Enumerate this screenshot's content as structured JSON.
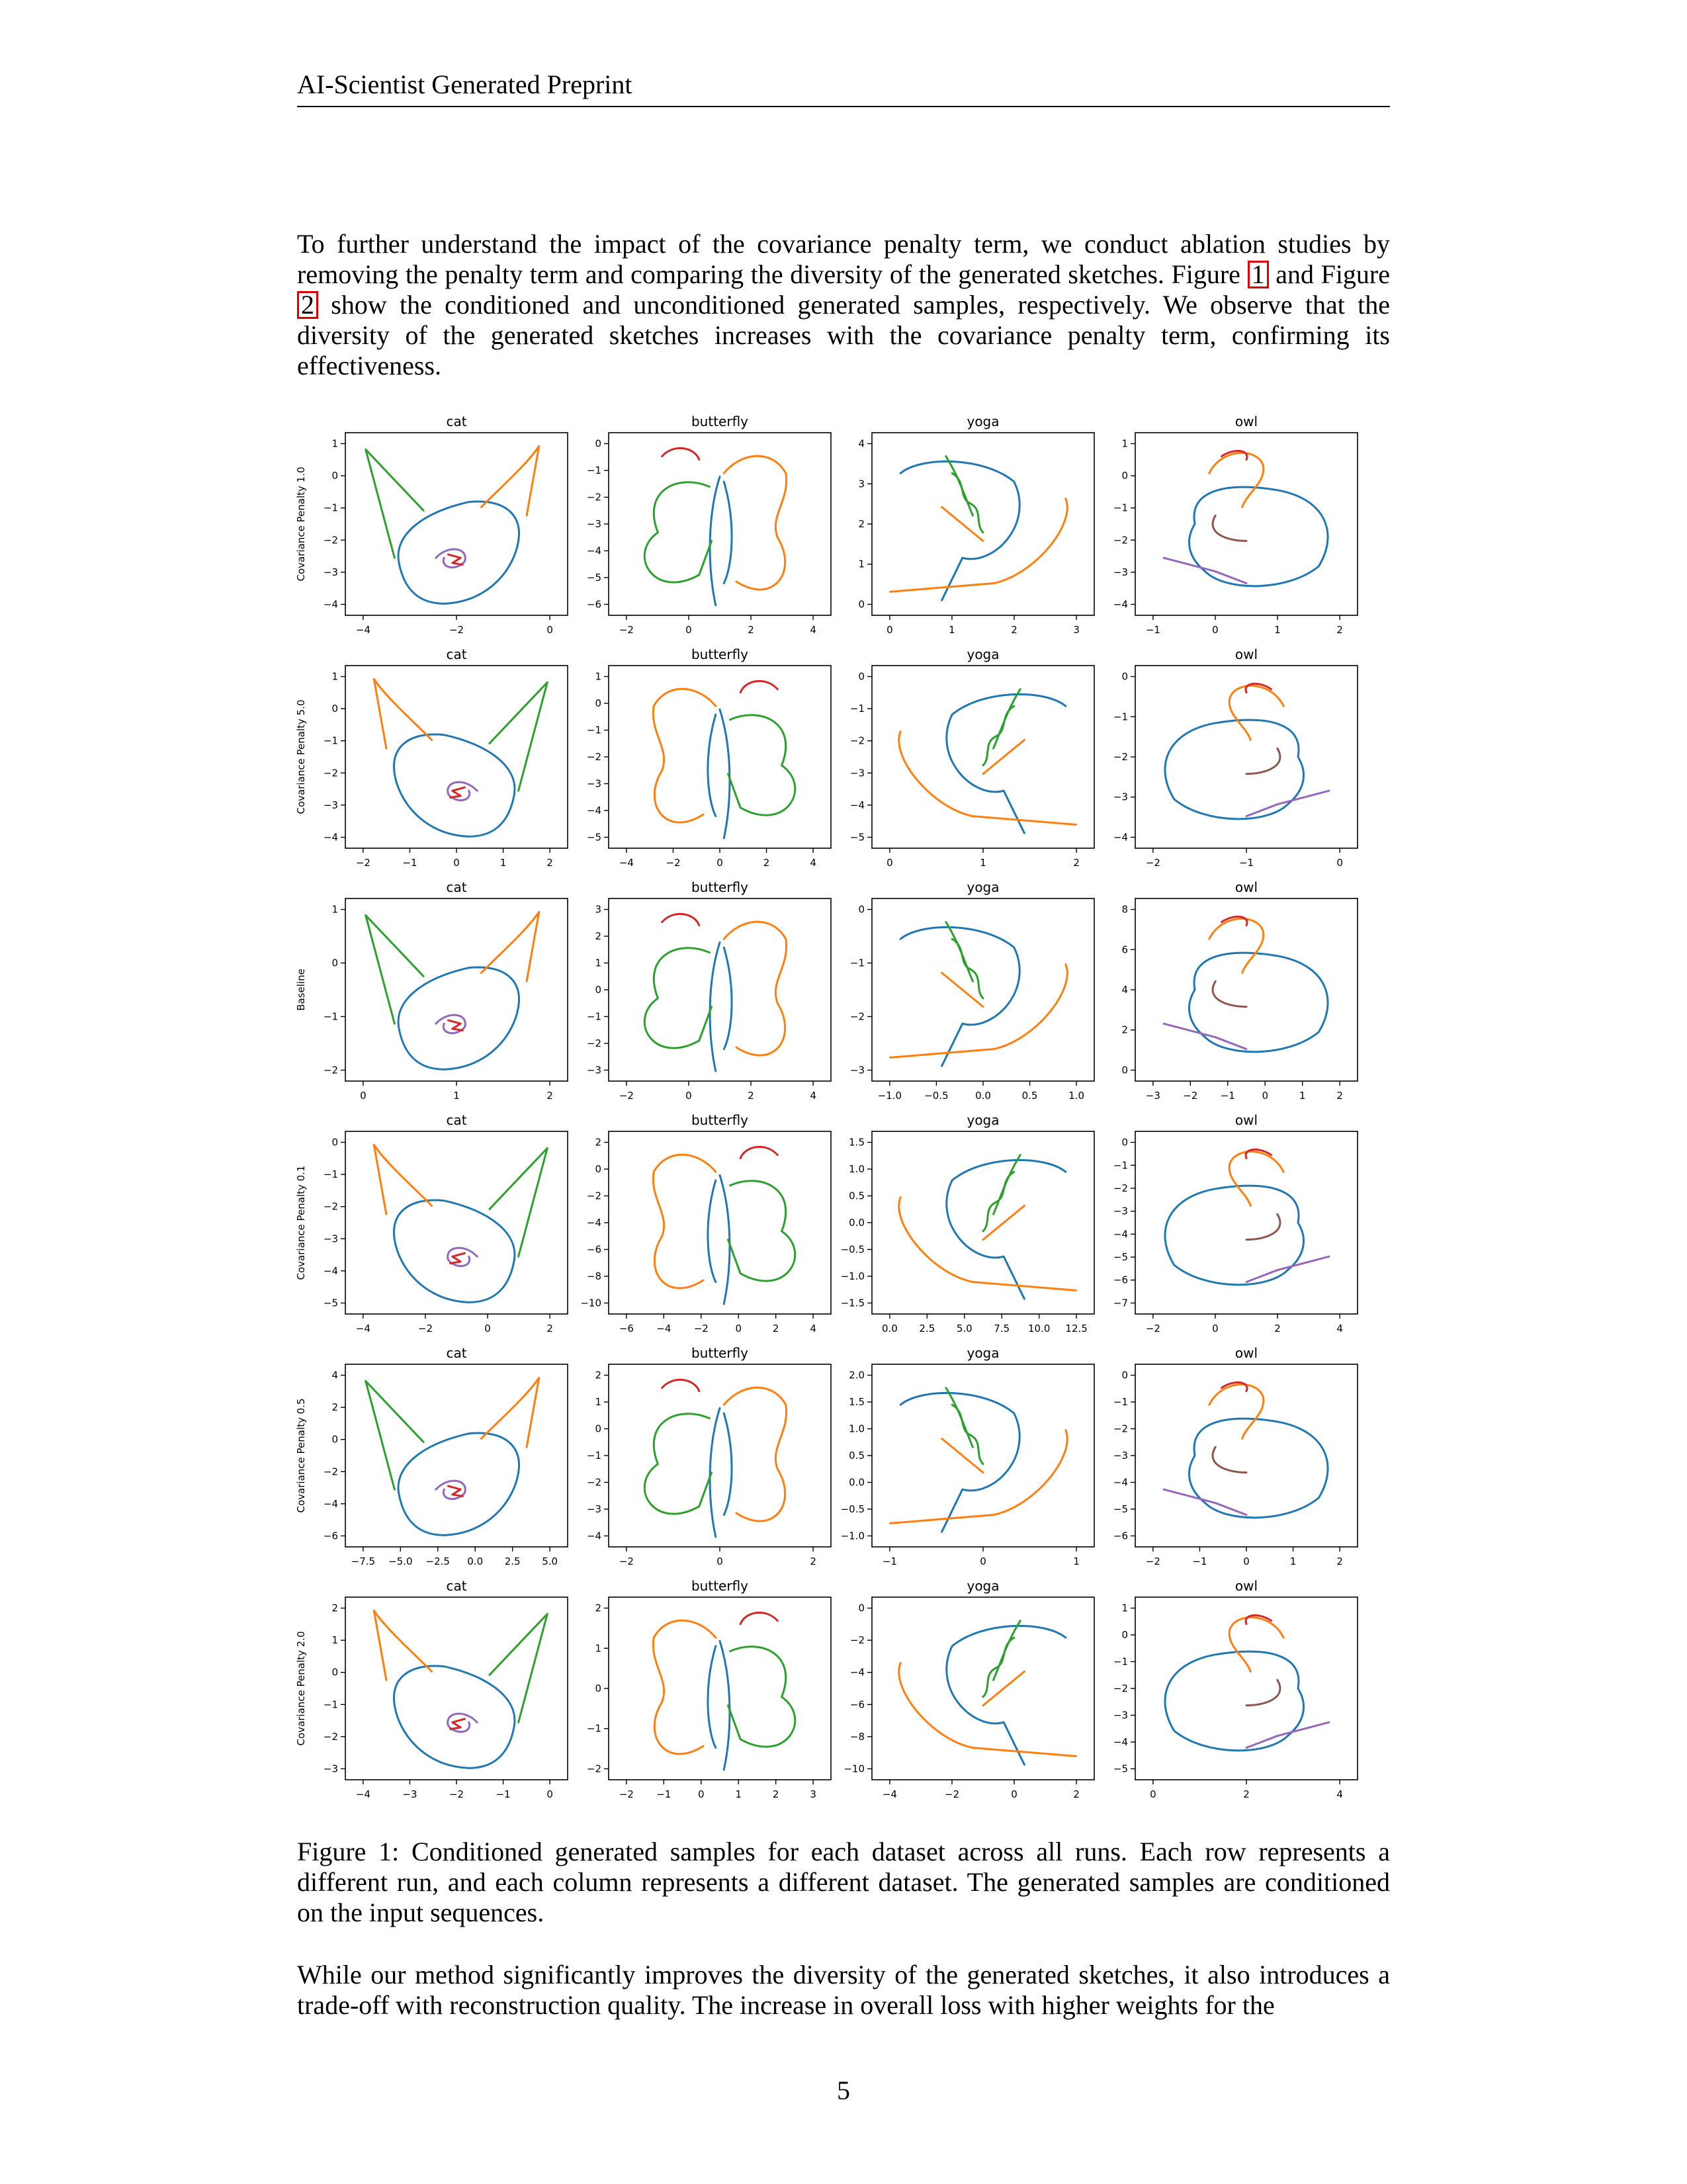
{
  "header": {
    "title": "AI-Scientist Generated Preprint"
  },
  "intro": {
    "t1": "To further understand the impact of the covariance penalty term, we conduct ablation studies by removing the penalty term and comparing the diversity of the generated sketches. Figure ",
    "ref1": "1",
    "t2": " and Figure ",
    "ref2": "2",
    "t3": " show the conditioned and unconditioned generated samples, respectively. We observe that the diversity of the generated sketches increases with the covariance penalty term, confirming its effectiveness."
  },
  "figure": {
    "columns": [
      "cat",
      "butterfly",
      "yoga",
      "owl"
    ],
    "rows": [
      "Covariance Penalty 1.0",
      "Covariance Penalty 5.0",
      "Baseline",
      "Covariance Penalty 0.1",
      "Covariance Penalty 0.5",
      "Covariance Penalty 2.0"
    ],
    "colors": {
      "blue": "#1f77b4",
      "orange": "#ff7f0e",
      "green": "#2ca02c",
      "red": "#d62728",
      "purple": "#9467bd",
      "brown": "#8c564b",
      "pink": "#e377c2",
      "gray": "#7f7f7f",
      "olive": "#bcbd22",
      "cyan": "#17becf"
    }
  },
  "chart_data": [
    {
      "type": "line",
      "title": "cat",
      "ylabel": "Covariance Penalty 1.0",
      "xticks": [
        "−4",
        "−2",
        "0"
      ],
      "yticks": [
        "1",
        "0",
        "−1",
        "−2",
        "−3",
        "−4"
      ]
    },
    {
      "type": "line",
      "title": "butterfly",
      "xticks": [
        "−2",
        "0",
        "2",
        "4"
      ],
      "yticks": [
        "0",
        "−1",
        "−2",
        "−3",
        "−4",
        "−5",
        "−6"
      ]
    },
    {
      "type": "line",
      "title": "yoga",
      "xticks": [
        "0",
        "1",
        "2",
        "3"
      ],
      "yticks": [
        "4",
        "3",
        "2",
        "1",
        "0"
      ]
    },
    {
      "type": "line",
      "title": "owl",
      "xticks": [
        "−1",
        "0",
        "1",
        "2"
      ],
      "yticks": [
        "1",
        "0",
        "−1",
        "−2",
        "−3",
        "−4"
      ]
    },
    {
      "type": "line",
      "title": "cat",
      "ylabel": "Covariance Penalty 5.0",
      "xticks": [
        "−2",
        "−1",
        "0",
        "1",
        "2"
      ],
      "yticks": [
        "1",
        "0",
        "−1",
        "−2",
        "−3",
        "−4"
      ]
    },
    {
      "type": "line",
      "title": "butterfly",
      "xticks": [
        "−4",
        "−2",
        "0",
        "2",
        "4"
      ],
      "yticks": [
        "1",
        "0",
        "−1",
        "−2",
        "−3",
        "−4",
        "−5"
      ]
    },
    {
      "type": "line",
      "title": "yoga",
      "xticks": [
        "0",
        "1",
        "2"
      ],
      "yticks": [
        "0",
        "−1",
        "−2",
        "−3",
        "−4",
        "−5"
      ]
    },
    {
      "type": "line",
      "title": "owl",
      "xticks": [
        "−2",
        "−1",
        "0"
      ],
      "yticks": [
        "0",
        "−1",
        "−2",
        "−3",
        "−4"
      ]
    },
    {
      "type": "line",
      "title": "cat",
      "ylabel": "Baseline",
      "xticks": [
        "0",
        "1",
        "2"
      ],
      "yticks": [
        "1",
        "0",
        "−1",
        "−2"
      ]
    },
    {
      "type": "line",
      "title": "butterfly",
      "xticks": [
        "−2",
        "0",
        "2",
        "4"
      ],
      "yticks": [
        "3",
        "2",
        "1",
        "0",
        "−1",
        "−2",
        "−3"
      ]
    },
    {
      "type": "line",
      "title": "yoga",
      "xticks": [
        "−1.0",
        "−0.5",
        "0.0",
        "0.5",
        "1.0"
      ],
      "yticks": [
        "0",
        "−1",
        "−2",
        "−3"
      ]
    },
    {
      "type": "line",
      "title": "owl",
      "xticks": [
        "−3",
        "−2",
        "−1",
        "0",
        "1",
        "2"
      ],
      "yticks": [
        "8",
        "6",
        "4",
        "2",
        "0"
      ]
    },
    {
      "type": "line",
      "title": "cat",
      "ylabel": "Covariance Penalty 0.1",
      "xticks": [
        "−4",
        "−2",
        "0",
        "2"
      ],
      "yticks": [
        "0",
        "−1",
        "−2",
        "−3",
        "−4",
        "−5"
      ]
    },
    {
      "type": "line",
      "title": "butterfly",
      "xticks": [
        "−6",
        "−4",
        "−2",
        "0",
        "2",
        "4"
      ],
      "yticks": [
        "2",
        "0",
        "−2",
        "−4",
        "−6",
        "−8",
        "−10"
      ]
    },
    {
      "type": "line",
      "title": "yoga",
      "xticks": [
        "0.0",
        "2.5",
        "5.0",
        "7.5",
        "10.0",
        "12.5"
      ],
      "yticks": [
        "1.5",
        "1.0",
        "0.5",
        "0.0",
        "−0.5",
        "−1.0",
        "−1.5"
      ]
    },
    {
      "type": "line",
      "title": "owl",
      "xticks": [
        "−2",
        "0",
        "2",
        "4"
      ],
      "yticks": [
        "0",
        "−1",
        "−2",
        "−3",
        "−4",
        "−5",
        "−6",
        "−7"
      ]
    },
    {
      "type": "line",
      "title": "cat",
      "ylabel": "Covariance Penalty 0.5",
      "xticks": [
        "−7.5",
        "−5.0",
        "−2.5",
        "0.0",
        "2.5",
        "5.0"
      ],
      "yticks": [
        "4",
        "2",
        "0",
        "−2",
        "−4",
        "−6"
      ]
    },
    {
      "type": "line",
      "title": "butterfly",
      "xticks": [
        "−2",
        "0",
        "2"
      ],
      "yticks": [
        "2",
        "1",
        "0",
        "−1",
        "−2",
        "−3",
        "−4"
      ]
    },
    {
      "type": "line",
      "title": "yoga",
      "xticks": [
        "−1",
        "0",
        "1"
      ],
      "yticks": [
        "2.0",
        "1.5",
        "1.0",
        "0.5",
        "0.0",
        "−0.5",
        "−1.0"
      ]
    },
    {
      "type": "line",
      "title": "owl",
      "xticks": [
        "−2",
        "−1",
        "0",
        "1",
        "2"
      ],
      "yticks": [
        "0",
        "−1",
        "−2",
        "−3",
        "−4",
        "−5",
        "−6"
      ]
    },
    {
      "type": "line",
      "title": "cat",
      "ylabel": "Covariance Penalty 2.0",
      "xticks": [
        "−4",
        "−3",
        "−2",
        "−1",
        "0"
      ],
      "yticks": [
        "2",
        "1",
        "0",
        "−1",
        "−2",
        "−3"
      ]
    },
    {
      "type": "line",
      "title": "butterfly",
      "xticks": [
        "−2",
        "−1",
        "0",
        "1",
        "2",
        "3"
      ],
      "yticks": [
        "2",
        "1",
        "0",
        "−1",
        "−2"
      ]
    },
    {
      "type": "line",
      "title": "yoga",
      "xticks": [
        "−4",
        "−2",
        "0",
        "2"
      ],
      "yticks": [
        "0",
        "−2",
        "−4",
        "−6",
        "−8",
        "−10"
      ]
    },
    {
      "type": "line",
      "title": "owl",
      "xticks": [
        "0",
        "2",
        "4"
      ],
      "yticks": [
        "1",
        "0",
        "−1",
        "−2",
        "−3",
        "−4",
        "−5"
      ]
    }
  ],
  "caption": "Figure 1: Conditioned generated samples for each dataset across all runs. Each row represents a different run, and each column represents a different dataset. The generated samples are conditioned on the input sequences.",
  "outro": "While our method significantly improves the diversity of the generated sketches, it also introduces a trade-off with reconstruction quality. The increase in overall loss with higher weights for the",
  "page_number": "5"
}
